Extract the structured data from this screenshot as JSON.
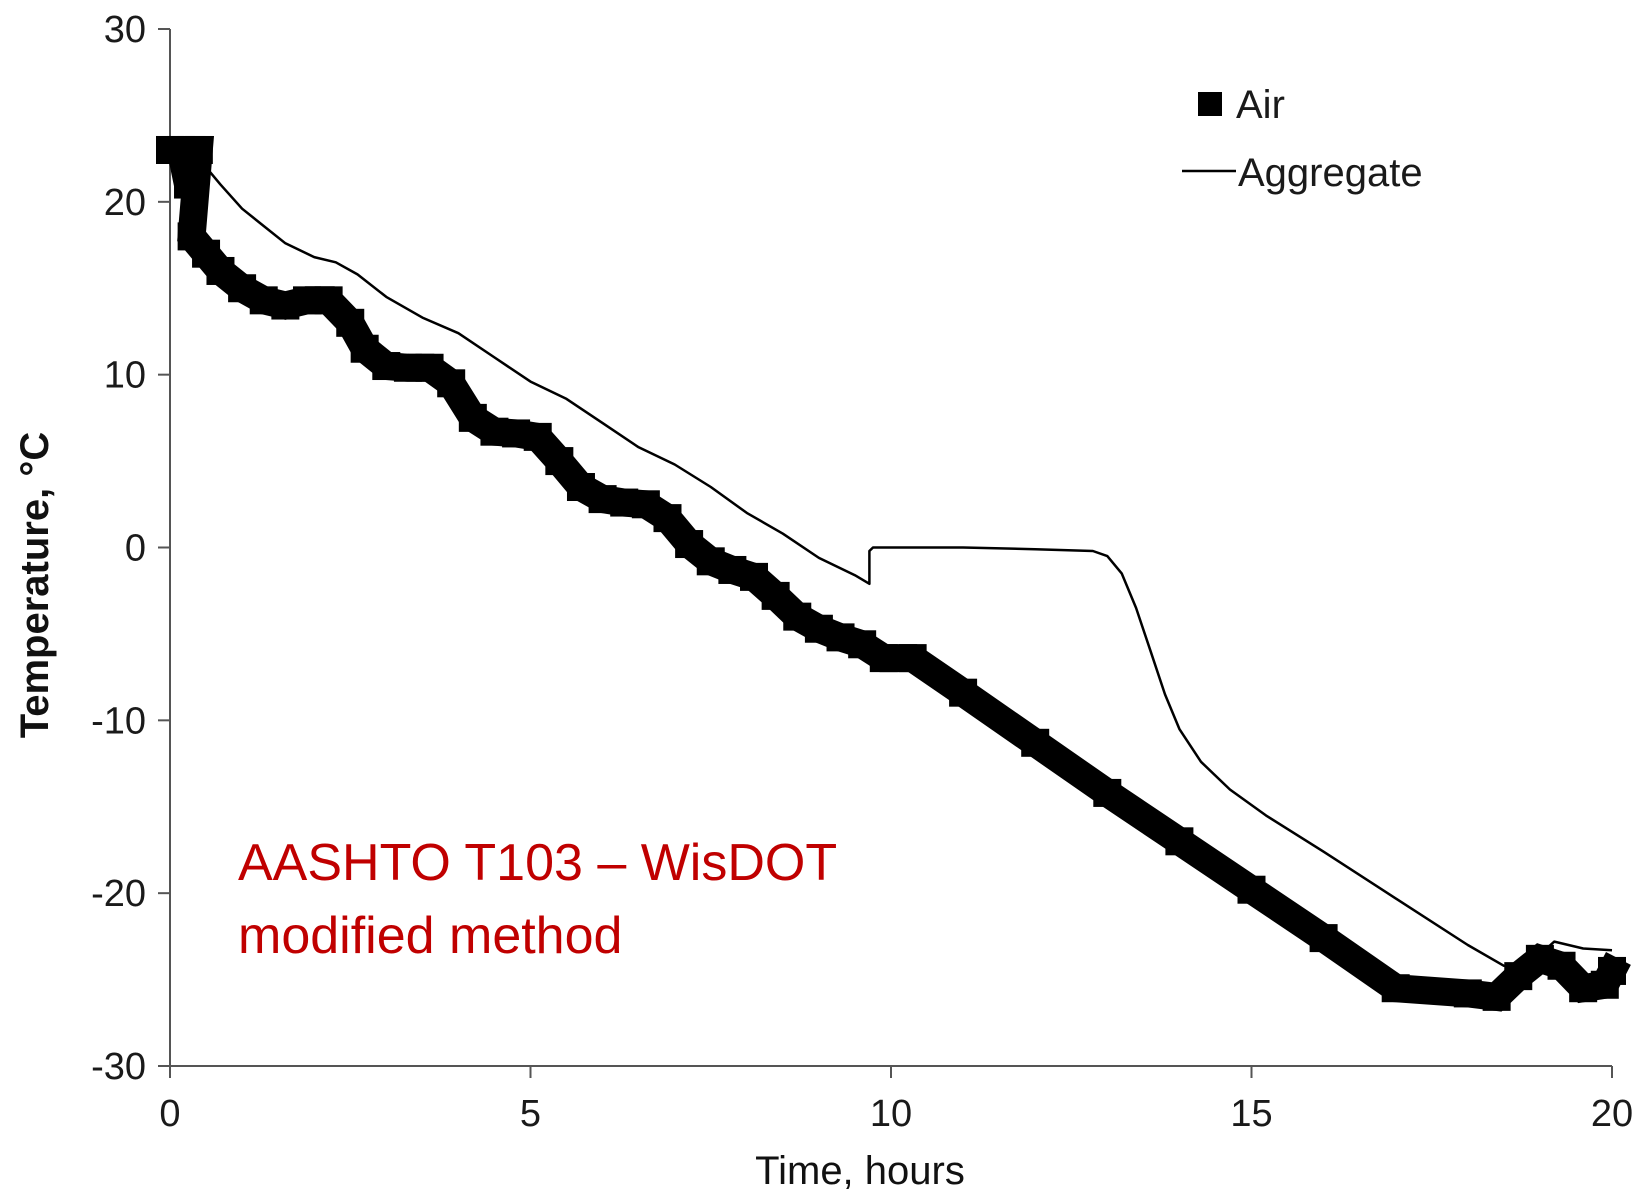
{
  "chart_data": {
    "type": "line",
    "title": "",
    "xlabel": "Time, hours",
    "ylabel": "Temperature, °C",
    "xlim": [
      0,
      20
    ],
    "ylim": [
      -30,
      30
    ],
    "x_ticks": [
      0,
      5,
      10,
      15,
      20
    ],
    "y_ticks": [
      30,
      20,
      10,
      0,
      -10,
      -20,
      -30
    ],
    "grid": false,
    "legend_position": "top-right",
    "annotation": {
      "lines": [
        "AASHTO T103 – WisDOT",
        "modified method"
      ],
      "color": "#c00000"
    },
    "series": [
      {
        "name": "Air",
        "marker": "square",
        "color": "#000000",
        "points": [
          [
            0.0,
            23.0
          ],
          [
            0.15,
            23.0
          ],
          [
            0.25,
            21.0
          ],
          [
            0.3,
            23.0
          ],
          [
            0.4,
            23.0
          ],
          [
            0.3,
            18.0
          ],
          [
            0.5,
            17.0
          ],
          [
            0.7,
            16.0
          ],
          [
            1.0,
            15.0
          ],
          [
            1.3,
            14.3
          ],
          [
            1.6,
            14.0
          ],
          [
            1.9,
            14.3
          ],
          [
            2.2,
            14.3
          ],
          [
            2.5,
            13.0
          ],
          [
            2.7,
            11.5
          ],
          [
            3.0,
            10.5
          ],
          [
            3.3,
            10.4
          ],
          [
            3.6,
            10.4
          ],
          [
            3.9,
            9.5
          ],
          [
            4.2,
            7.5
          ],
          [
            4.5,
            6.7
          ],
          [
            4.8,
            6.6
          ],
          [
            5.1,
            6.4
          ],
          [
            5.4,
            5.0
          ],
          [
            5.7,
            3.5
          ],
          [
            6.0,
            2.8
          ],
          [
            6.3,
            2.6
          ],
          [
            6.6,
            2.5
          ],
          [
            6.9,
            1.7
          ],
          [
            7.2,
            0.2
          ],
          [
            7.5,
            -0.8
          ],
          [
            7.8,
            -1.3
          ],
          [
            8.1,
            -1.7
          ],
          [
            8.4,
            -2.8
          ],
          [
            8.7,
            -4.0
          ],
          [
            9.0,
            -4.7
          ],
          [
            9.3,
            -5.2
          ],
          [
            9.6,
            -5.6
          ],
          [
            9.9,
            -6.4
          ],
          [
            10.3,
            -6.4
          ],
          [
            11.0,
            -8.4
          ],
          [
            12.0,
            -11.3
          ],
          [
            13.0,
            -14.2
          ],
          [
            14.0,
            -17.0
          ],
          [
            15.0,
            -19.8
          ],
          [
            16.0,
            -22.6
          ],
          [
            17.0,
            -25.5
          ],
          [
            18.0,
            -25.8
          ],
          [
            18.4,
            -26.0
          ],
          [
            18.7,
            -24.8
          ],
          [
            19.0,
            -23.8
          ],
          [
            19.3,
            -24.2
          ],
          [
            19.6,
            -25.5
          ],
          [
            19.9,
            -25.3
          ],
          [
            20.0,
            -24.5
          ]
        ]
      },
      {
        "name": "Aggregate",
        "marker": "line",
        "color": "#000000",
        "points": [
          [
            0.4,
            22.5
          ],
          [
            0.7,
            21.0
          ],
          [
            1.0,
            19.6
          ],
          [
            1.3,
            18.6
          ],
          [
            1.6,
            17.6
          ],
          [
            2.0,
            16.8
          ],
          [
            2.3,
            16.5
          ],
          [
            2.6,
            15.8
          ],
          [
            3.0,
            14.5
          ],
          [
            3.5,
            13.3
          ],
          [
            4.0,
            12.4
          ],
          [
            4.5,
            11.0
          ],
          [
            5.0,
            9.6
          ],
          [
            5.5,
            8.6
          ],
          [
            6.0,
            7.2
          ],
          [
            6.5,
            5.8
          ],
          [
            7.0,
            4.8
          ],
          [
            7.5,
            3.5
          ],
          [
            8.0,
            2.0
          ],
          [
            8.5,
            0.8
          ],
          [
            9.0,
            -0.6
          ],
          [
            9.5,
            -1.6
          ],
          [
            9.7,
            -2.1
          ],
          [
            9.7,
            -0.2
          ],
          [
            9.75,
            0.0
          ],
          [
            11.0,
            0.0
          ],
          [
            12.0,
            -0.1
          ],
          [
            12.8,
            -0.2
          ],
          [
            13.0,
            -0.5
          ],
          [
            13.2,
            -1.5
          ],
          [
            13.4,
            -3.5
          ],
          [
            13.6,
            -6.0
          ],
          [
            13.8,
            -8.5
          ],
          [
            14.0,
            -10.5
          ],
          [
            14.3,
            -12.4
          ],
          [
            14.7,
            -14.0
          ],
          [
            15.2,
            -15.5
          ],
          [
            16.0,
            -17.6
          ],
          [
            17.0,
            -20.3
          ],
          [
            18.0,
            -23.0
          ],
          [
            18.5,
            -24.2
          ],
          [
            18.8,
            -24.3
          ],
          [
            19.2,
            -22.8
          ],
          [
            19.6,
            -23.2
          ],
          [
            20.0,
            -23.3
          ]
        ]
      }
    ]
  }
}
